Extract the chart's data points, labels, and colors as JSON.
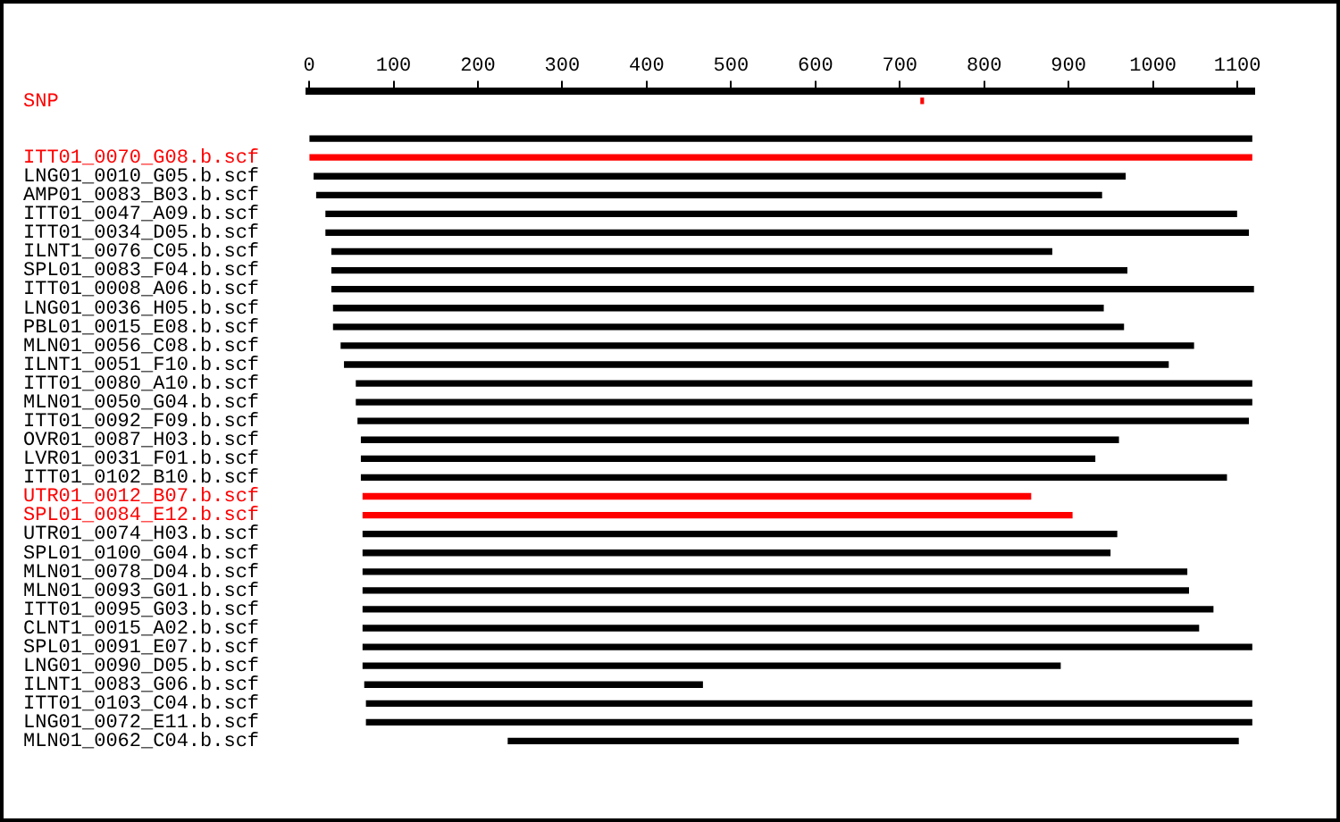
{
  "chart_data": {
    "type": "bar",
    "orientation": "horizontal",
    "legend": false,
    "grid": false,
    "categories": [
      "SNP",
      null,
      null,
      "ITT01_0070_G08.b.scf",
      "LNG01_0010_G05.b.scf",
      "AMP01_0083_B03.b.scf",
      "ITT01_0047_A09.b.scf",
      "ITT01_0034_D05.b.scf",
      "ILNT1_0076_C05.b.scf",
      "SPL01_0083_F04.b.scf",
      "ITT01_0008_A06.b.scf",
      "LNG01_0036_H05.b.scf",
      "PBL01_0015_E08.b.scf",
      "MLN01_0056_C08.b.scf",
      "ILNT1_0051_F10.b.scf",
      "ITT01_0080_A10.b.scf",
      "MLN01_0050_G04.b.scf",
      "ITT01_0092_F09.b.scf",
      "OVR01_0087_H03.b.scf",
      "LVR01_0031_F01.b.scf",
      "ITT01_0102_B10.b.scf",
      "UTR01_0012_B07.b.scf",
      "SPL01_0084_E12.b.scf",
      "UTR01_0074_H03.b.scf",
      "SPL01_0100_G04.b.scf",
      "MLN01_0078_D04.b.scf",
      "MLN01_0093_G01.b.scf",
      "ITT01_0095_G03.b.scf",
      "CLNT1_0015_A02.b.scf",
      "SPL01_0091_E07.b.scf",
      "LNG01_0090_D05.b.scf",
      "ILNT1_0083_G06.b.scf",
      "ITT01_0103_C04.b.scf",
      "LNG01_0072_E11.b.scf",
      "MLN01_0062_C04.b.scf"
    ],
    "base": [
      725,
      null,
      0,
      0,
      6,
      9,
      20,
      20,
      27,
      27,
      27,
      29,
      29,
      38,
      42,
      56,
      56,
      58,
      62,
      62,
      62,
      64,
      64,
      64,
      64,
      64,
      64,
      64,
      64,
      64,
      64,
      66,
      68,
      68,
      236
    ],
    "values": [
      3,
      null,
      1117,
      1117,
      961,
      930,
      1079,
      1093,
      853,
      942,
      1092,
      912,
      936,
      1010,
      976,
      1061,
      1061,
      1055,
      897,
      869,
      1025,
      791,
      840,
      893,
      885,
      976,
      978,
      1007,
      990,
      1053,
      826,
      400,
      1049,
      1049,
      865
    ],
    "colors": [
      "#ff0000",
      null,
      "#000000",
      "#ff0000",
      "#000000",
      "#000000",
      "#000000",
      "#000000",
      "#000000",
      "#000000",
      "#000000",
      "#000000",
      "#000000",
      "#000000",
      "#000000",
      "#000000",
      "#000000",
      "#000000",
      "#000000",
      "#000000",
      "#000000",
      "#ff0000",
      "#ff0000",
      "#000000",
      "#000000",
      "#000000",
      "#000000",
      "#000000",
      "#000000",
      "#000000",
      "#000000",
      "#000000",
      "#000000",
      "#000000",
      "#000000"
    ],
    "xlim": [
      0,
      1120
    ],
    "xticks": [
      0,
      100,
      200,
      300,
      400,
      500,
      600,
      700,
      800,
      900,
      1000,
      1100
    ]
  }
}
